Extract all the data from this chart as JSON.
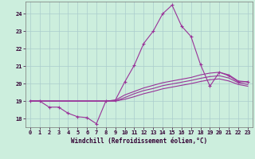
{
  "xlabel": "Windchill (Refroidissement éolien,°C)",
  "bg_color": "#cceedd",
  "grid_color": "#aacccc",
  "line_color": "#993399",
  "xlim": [
    -0.5,
    23.5
  ],
  "ylim": [
    17.5,
    24.7
  ],
  "yticks": [
    18,
    19,
    20,
    21,
    22,
    23,
    24
  ],
  "xticks": [
    0,
    1,
    2,
    3,
    4,
    5,
    6,
    7,
    8,
    9,
    10,
    11,
    12,
    13,
    14,
    15,
    16,
    17,
    18,
    19,
    20,
    21,
    22,
    23
  ],
  "series1_x": [
    0,
    1,
    2,
    3,
    4,
    5,
    6,
    7,
    8,
    9,
    10,
    11,
    12,
    13,
    14,
    15,
    16,
    17,
    18,
    19,
    20,
    21,
    22,
    23
  ],
  "series1_y": [
    19.0,
    19.0,
    18.65,
    18.65,
    18.3,
    18.1,
    18.05,
    17.7,
    19.0,
    19.05,
    20.1,
    21.05,
    22.3,
    23.0,
    24.0,
    24.5,
    23.3,
    22.7,
    21.1,
    19.85,
    20.65,
    20.45,
    20.1,
    20.1
  ],
  "series2_x": [
    0,
    1,
    2,
    3,
    4,
    5,
    6,
    7,
    8,
    9,
    10,
    11,
    12,
    13,
    14,
    15,
    16,
    17,
    18,
    19,
    20,
    21,
    22,
    23
  ],
  "series2_y": [
    19.0,
    19.0,
    19.0,
    19.0,
    19.0,
    19.0,
    19.0,
    19.0,
    19.0,
    19.05,
    19.35,
    19.55,
    19.75,
    19.9,
    20.05,
    20.15,
    20.25,
    20.35,
    20.5,
    20.6,
    20.65,
    20.5,
    20.15,
    20.1
  ],
  "series3_x": [
    0,
    1,
    2,
    3,
    4,
    5,
    6,
    7,
    8,
    9,
    10,
    11,
    12,
    13,
    14,
    15,
    16,
    17,
    18,
    19,
    20,
    21,
    22,
    23
  ],
  "series3_y": [
    19.0,
    19.0,
    19.0,
    19.0,
    19.0,
    19.0,
    19.0,
    19.0,
    19.0,
    19.0,
    19.2,
    19.42,
    19.6,
    19.72,
    19.88,
    19.98,
    20.08,
    20.18,
    20.3,
    20.4,
    20.45,
    20.32,
    20.05,
    19.95
  ],
  "series4_x": [
    0,
    1,
    2,
    3,
    4,
    5,
    6,
    7,
    8,
    9,
    10,
    11,
    12,
    13,
    14,
    15,
    16,
    17,
    18,
    19,
    20,
    21,
    22,
    23
  ],
  "series4_y": [
    19.0,
    19.0,
    19.0,
    19.0,
    19.0,
    19.0,
    19.0,
    19.0,
    19.0,
    19.0,
    19.1,
    19.25,
    19.42,
    19.55,
    19.7,
    19.8,
    19.9,
    20.0,
    20.12,
    20.22,
    20.27,
    20.15,
    19.95,
    19.85
  ]
}
